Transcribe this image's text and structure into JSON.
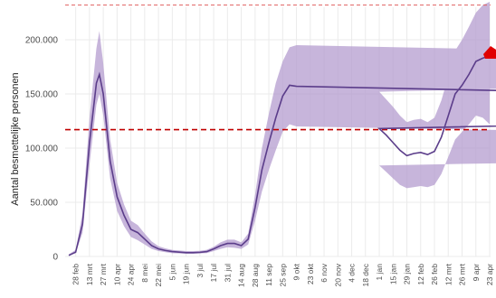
{
  "chart_data": {
    "type": "line",
    "title": "",
    "xlabel": "",
    "ylabel": "Aantal besmettelijke personen",
    "ylim": [
      0,
      230000
    ],
    "y_ticks": [
      0,
      50000,
      100000,
      150000,
      200000
    ],
    "y_tick_labels": [
      "0",
      "50.000",
      "100.000",
      "150.000",
      "200.000"
    ],
    "x_tick_labels": [
      "28 feb",
      "13 mrt",
      "27 mrt",
      "10 apr",
      "24 apr",
      "8 mei",
      "22 mei",
      "5 jun",
      "19 jun",
      "3 jul",
      "17 jul",
      "31 jul",
      "14 aug",
      "28 aug",
      "11 sep",
      "25 sep",
      "9 okt",
      "23 okt",
      "6 nov",
      "20 nov",
      "4 dec",
      "18 dec",
      "1 jan",
      "15 jan",
      "29 jan",
      "12 feb",
      "26 feb",
      "12 mrt",
      "26 mrt",
      "9 apr",
      "23 apr"
    ],
    "grid": true,
    "colors": {
      "line": "#5b3d8a",
      "band": "#b49ccf",
      "hline": "#c00000",
      "top_line": "#e06060",
      "marker": "#e00000"
    },
    "series": [
      {
        "x": [
          "21 feb",
          "28 feb",
          "6 mrt",
          "13 mrt",
          "20 mrt",
          "23 mrt",
          "27 mrt",
          "3 apr",
          "10 apr",
          "17 apr",
          "24 apr",
          "1 mei",
          "8 mei",
          "15 mei",
          "22 mei",
          "29 mei",
          "5 jun",
          "12 jun",
          "19 jun",
          "26 jun",
          "3 jul",
          "10 jul",
          "17 jul",
          "24 jul",
          "31 jul",
          "7 aug",
          "14 aug",
          "21 aug",
          "28 aug",
          "4 sep",
          "11 sep",
          "18 sep",
          "25 sep",
          "2 okt",
          "9 okt",
          "16 okt",
          "23 okt",
          "30 okt",
          "6 nov",
          "13 nov",
          "20 nov",
          "27 nov",
          "4 dec",
          "11 dec",
          "18 dec",
          "25 dec",
          "1 jan",
          "8 jan",
          "15 jan",
          "22 jan",
          "29 jan",
          "5 feb",
          "12 feb",
          "19 feb",
          "26 feb",
          "5 mrt",
          "12 mrt",
          "19 mrt",
          "26 mrt",
          "2 apr",
          "9 apr",
          "16 apr",
          "23 apr"
        ],
        "values": [
          1000,
          4000,
          30000,
          105000,
          160000,
          168000,
          150000,
          88000,
          55000,
          38000,
          25000,
          22000,
          16000,
          10000,
          7000,
          5500,
          4500,
          4000,
          3500,
          3500,
          3800,
          4500,
          7000,
          10000,
          12000,
          12000,
          10000,
          16000,
          45000,
          80000,
          105000,
          128000,
          148000,
          158000,
          157000,
          150000,
          140000,
          122000,
          108000,
          103000,
          100000,
          105000,
          125000,
          162000,
          140000,
          125000,
          118000,
          112000,
          105000,
          98000,
          93000,
          95000,
          96000,
          94000,
          97000,
          110000,
          130000,
          150000,
          158000,
          168000,
          180000,
          183000,
          185000
        ],
        "lower": [
          1000,
          3000,
          22000,
          85000,
          140000,
          150000,
          130000,
          72000,
          42000,
          28000,
          18000,
          15000,
          11000,
          7000,
          5000,
          4000,
          3000,
          2800,
          2500,
          2500,
          2800,
          3200,
          5000,
          7000,
          8500,
          8000,
          7000,
          11000,
          33000,
          60000,
          80000,
          98000,
          115000,
          122000,
          120000,
          114000,
          105000,
          88000,
          76000,
          70000,
          67000,
          72000,
          90000,
          118000,
          102000,
          90000,
          84000,
          78000,
          72000,
          66000,
          63000,
          64000,
          65000,
          64000,
          66000,
          76000,
          92000,
          108000,
          115000,
          122000,
          130000,
          128000,
          122000
        ],
        "upper": [
          2000,
          6000,
          40000,
          128000,
          192000,
          208000,
          178000,
          108000,
          68000,
          48000,
          33000,
          29000,
          21000,
          14000,
          9500,
          7500,
          6000,
          5500,
          5000,
          5000,
          5200,
          6200,
          9000,
          13000,
          15500,
          15500,
          13000,
          21000,
          57000,
          100000,
          132000,
          160000,
          180000,
          193000,
          195000,
          188000,
          176000,
          158000,
          142000,
          136000,
          133000,
          138000,
          160000,
          205000,
          178000,
          160000,
          152000,
          145000,
          138000,
          130000,
          124000,
          126000,
          127000,
          124000,
          128000,
          144000,
          166000,
          190000,
          200000,
          212000,
          225000,
          232000,
          235000
        ]
      }
    ],
    "reference_lines": [
      {
        "y": 117000,
        "style": "dashed",
        "color": "#c00000"
      },
      {
        "y": 232000,
        "style": "dashed",
        "color": "#e06060"
      }
    ],
    "marker": {
      "x": "23 apr",
      "y": 190000,
      "shape": "arrow"
    }
  }
}
